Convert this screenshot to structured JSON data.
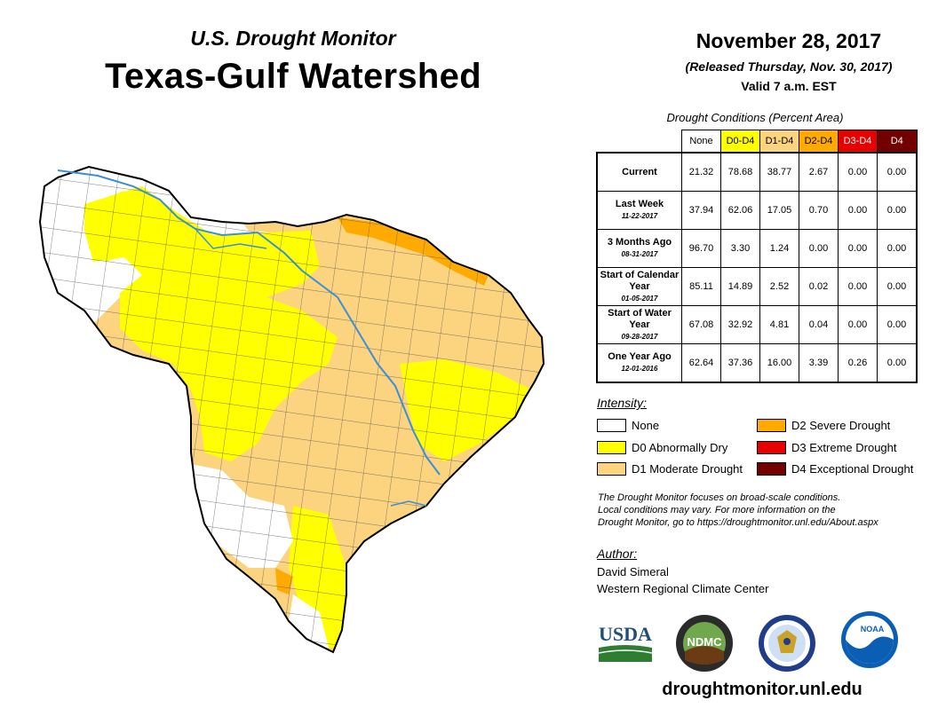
{
  "header": {
    "subtitle": "U.S. Drought Monitor",
    "title": "Texas-Gulf Watershed",
    "date": "November 28, 2017",
    "released": "(Released Thursday, Nov. 30, 2017)",
    "valid": "Valid 7 a.m. EST"
  },
  "table": {
    "caption": "Drought Conditions (Percent Area)",
    "columns": [
      "None",
      "D0-D4",
      "D1-D4",
      "D2-D4",
      "D3-D4",
      "D4"
    ],
    "column_colors": [
      "#ffffff",
      "#ffff00",
      "#fcd37f",
      "#ffaa00",
      "#e60000",
      "#730000"
    ],
    "rows": [
      {
        "label": "Current",
        "date": "",
        "values": [
          "21.32",
          "78.68",
          "38.77",
          "2.67",
          "0.00",
          "0.00"
        ]
      },
      {
        "label": "Last Week",
        "date": "11-22-2017",
        "values": [
          "37.94",
          "62.06",
          "17.05",
          "0.70",
          "0.00",
          "0.00"
        ]
      },
      {
        "label": "3 Months Ago",
        "date": "08-31-2017",
        "values": [
          "96.70",
          "3.30",
          "1.24",
          "0.00",
          "0.00",
          "0.00"
        ]
      },
      {
        "label": "Start of Calendar Year",
        "date": "01-05-2017",
        "values": [
          "85.11",
          "14.89",
          "2.52",
          "0.02",
          "0.00",
          "0.00"
        ]
      },
      {
        "label": "Start of Water Year",
        "date": "09-28-2017",
        "values": [
          "67.08",
          "32.92",
          "4.81",
          "0.04",
          "0.00",
          "0.00"
        ]
      },
      {
        "label": "One Year Ago",
        "date": "12-01-2016",
        "values": [
          "62.64",
          "37.36",
          "16.00",
          "3.39",
          "0.26",
          "0.00"
        ]
      }
    ]
  },
  "legend": {
    "title": "Intensity:",
    "items": [
      {
        "label": "None",
        "color": "#ffffff"
      },
      {
        "label": "D0 Abnormally Dry",
        "color": "#ffff00"
      },
      {
        "label": "D1 Moderate Drought",
        "color": "#fcd37f"
      },
      {
        "label": "D2 Severe Drought",
        "color": "#ffaa00"
      },
      {
        "label": "D3 Extreme Drought",
        "color": "#e60000"
      },
      {
        "label": "D4 Exceptional Drought",
        "color": "#730000"
      }
    ]
  },
  "note": {
    "line1": "The Drought Monitor focuses on broad-scale conditions.",
    "line2": "Local conditions may vary. For more information on the",
    "line3": "Drought Monitor, go to https://droughtmonitor.unl.edu/About.aspx"
  },
  "author": {
    "title": "Author:",
    "name": "David Simeral",
    "org": "Western Regional Climate Center"
  },
  "logos": {
    "usda": "USDA",
    "ndmc": "NDMC",
    "noaa": "NOAA"
  },
  "website": "droughtmonitor.unl.edu",
  "colors": {
    "none": "#ffffff",
    "d0": "#ffff00",
    "d1": "#fcd37f",
    "d2": "#ffaa00",
    "river": "#3b8fd9",
    "county_lines": "#555555"
  }
}
